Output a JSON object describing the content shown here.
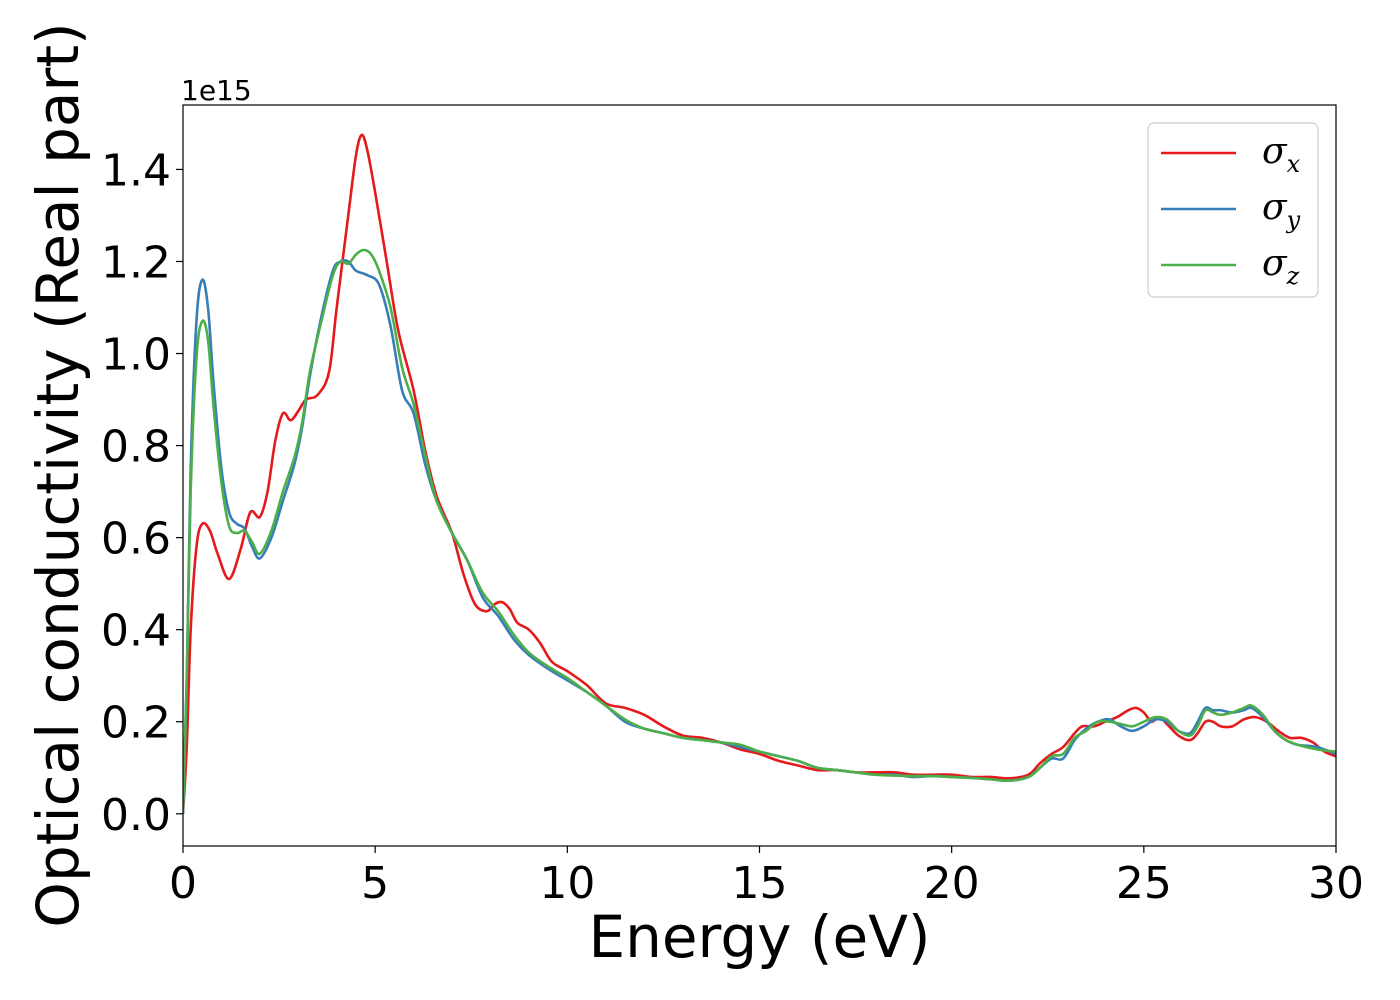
{
  "chart_data": {
    "type": "line",
    "title": "",
    "xlabel": "Energy (eV)",
    "ylabel": "Optical conductivity (Real part)",
    "y_offset_text": "1e15",
    "xlim": [
      0,
      30
    ],
    "ylim": [
      -0.07,
      1.54
    ],
    "x_ticks": [
      0,
      5,
      10,
      15,
      20,
      25,
      30
    ],
    "x_tick_labels": [
      "0",
      "5",
      "10",
      "15",
      "20",
      "25",
      "30"
    ],
    "y_ticks": [
      0.0,
      0.2,
      0.4,
      0.6,
      0.8,
      1.0,
      1.2,
      1.4
    ],
    "y_tick_labels": [
      "0.0",
      "0.2",
      "0.4",
      "0.6",
      "0.8",
      "1.0",
      "1.2",
      "1.4"
    ],
    "grid": false,
    "legend_position": "top-right",
    "series": [
      {
        "name": "σx",
        "legend_base": "σ",
        "legend_sub": "x",
        "color": "#e41a1c",
        "points": [
          [
            0,
            0.0
          ],
          [
            0.1,
            0.15
          ],
          [
            0.2,
            0.4
          ],
          [
            0.35,
            0.58
          ],
          [
            0.5,
            0.63
          ],
          [
            0.7,
            0.615
          ],
          [
            0.9,
            0.565
          ],
          [
            1.2,
            0.51
          ],
          [
            1.5,
            0.575
          ],
          [
            1.75,
            0.655
          ],
          [
            2.0,
            0.645
          ],
          [
            2.2,
            0.7
          ],
          [
            2.4,
            0.81
          ],
          [
            2.6,
            0.87
          ],
          [
            2.8,
            0.855
          ],
          [
            3.0,
            0.875
          ],
          [
            3.2,
            0.9
          ],
          [
            3.5,
            0.91
          ],
          [
            3.8,
            0.96
          ],
          [
            4.0,
            1.1
          ],
          [
            4.3,
            1.3
          ],
          [
            4.5,
            1.43
          ],
          [
            4.65,
            1.475
          ],
          [
            4.8,
            1.44
          ],
          [
            5.0,
            1.35
          ],
          [
            5.3,
            1.2
          ],
          [
            5.6,
            1.05
          ],
          [
            6.0,
            0.92
          ],
          [
            6.3,
            0.79
          ],
          [
            6.6,
            0.69
          ],
          [
            7.0,
            0.61
          ],
          [
            7.3,
            0.52
          ],
          [
            7.6,
            0.455
          ],
          [
            7.9,
            0.44
          ],
          [
            8.1,
            0.455
          ],
          [
            8.3,
            0.46
          ],
          [
            8.5,
            0.445
          ],
          [
            8.7,
            0.415
          ],
          [
            9.0,
            0.4
          ],
          [
            9.3,
            0.37
          ],
          [
            9.6,
            0.33
          ],
          [
            10.0,
            0.31
          ],
          [
            10.5,
            0.28
          ],
          [
            11.0,
            0.24
          ],
          [
            11.5,
            0.23
          ],
          [
            12.0,
            0.215
          ],
          [
            12.5,
            0.19
          ],
          [
            13.0,
            0.17
          ],
          [
            13.5,
            0.165
          ],
          [
            14.0,
            0.155
          ],
          [
            14.5,
            0.14
          ],
          [
            15.0,
            0.13
          ],
          [
            15.5,
            0.115
          ],
          [
            16.0,
            0.105
          ],
          [
            16.5,
            0.095
          ],
          [
            17.0,
            0.095
          ],
          [
            17.5,
            0.09
          ],
          [
            18.0,
            0.09
          ],
          [
            18.5,
            0.09
          ],
          [
            19.0,
            0.085
          ],
          [
            19.5,
            0.085
          ],
          [
            20.0,
            0.085
          ],
          [
            20.5,
            0.08
          ],
          [
            21.0,
            0.08
          ],
          [
            21.5,
            0.077
          ],
          [
            22.0,
            0.085
          ],
          [
            22.3,
            0.11
          ],
          [
            22.6,
            0.13
          ],
          [
            22.9,
            0.145
          ],
          [
            23.2,
            0.175
          ],
          [
            23.4,
            0.19
          ],
          [
            23.7,
            0.19
          ],
          [
            24.0,
            0.2
          ],
          [
            24.3,
            0.21
          ],
          [
            24.6,
            0.225
          ],
          [
            24.8,
            0.23
          ],
          [
            25.0,
            0.22
          ],
          [
            25.2,
            0.2
          ],
          [
            25.4,
            0.21
          ],
          [
            25.6,
            0.195
          ],
          [
            25.9,
            0.17
          ],
          [
            26.2,
            0.16
          ],
          [
            26.4,
            0.175
          ],
          [
            26.6,
            0.2
          ],
          [
            26.8,
            0.2
          ],
          [
            27.0,
            0.19
          ],
          [
            27.3,
            0.19
          ],
          [
            27.6,
            0.205
          ],
          [
            27.9,
            0.21
          ],
          [
            28.2,
            0.2
          ],
          [
            28.5,
            0.18
          ],
          [
            28.8,
            0.165
          ],
          [
            29.1,
            0.165
          ],
          [
            29.4,
            0.155
          ],
          [
            29.7,
            0.135
          ],
          [
            30.0,
            0.125
          ]
        ]
      },
      {
        "name": "σy",
        "legend_base": "σ",
        "legend_sub": "y",
        "color": "#377eb8",
        "points": [
          [
            0,
            0.0
          ],
          [
            0.1,
            0.3
          ],
          [
            0.2,
            0.75
          ],
          [
            0.35,
            1.07
          ],
          [
            0.5,
            1.16
          ],
          [
            0.65,
            1.1
          ],
          [
            0.8,
            0.93
          ],
          [
            1.0,
            0.75
          ],
          [
            1.2,
            0.655
          ],
          [
            1.4,
            0.63
          ],
          [
            1.6,
            0.62
          ],
          [
            1.8,
            0.58
          ],
          [
            2.0,
            0.555
          ],
          [
            2.3,
            0.6
          ],
          [
            2.6,
            0.68
          ],
          [
            2.9,
            0.76
          ],
          [
            3.1,
            0.84
          ],
          [
            3.3,
            0.95
          ],
          [
            3.6,
            1.08
          ],
          [
            3.9,
            1.18
          ],
          [
            4.1,
            1.2
          ],
          [
            4.3,
            1.2
          ],
          [
            4.5,
            1.18
          ],
          [
            4.8,
            1.17
          ],
          [
            5.1,
            1.15
          ],
          [
            5.4,
            1.06
          ],
          [
            5.7,
            0.92
          ],
          [
            6.0,
            0.87
          ],
          [
            6.3,
            0.76
          ],
          [
            6.6,
            0.68
          ],
          [
            7.0,
            0.61
          ],
          [
            7.4,
            0.55
          ],
          [
            7.8,
            0.47
          ],
          [
            8.2,
            0.43
          ],
          [
            8.6,
            0.38
          ],
          [
            9.0,
            0.345
          ],
          [
            9.5,
            0.315
          ],
          [
            10.0,
            0.29
          ],
          [
            10.5,
            0.265
          ],
          [
            11.0,
            0.235
          ],
          [
            11.5,
            0.2
          ],
          [
            12.0,
            0.185
          ],
          [
            12.5,
            0.175
          ],
          [
            13.0,
            0.165
          ],
          [
            13.5,
            0.16
          ],
          [
            14.0,
            0.155
          ],
          [
            14.5,
            0.145
          ],
          [
            15.0,
            0.135
          ],
          [
            15.5,
            0.125
          ],
          [
            16.0,
            0.115
          ],
          [
            16.5,
            0.1
          ],
          [
            17.0,
            0.095
          ],
          [
            17.5,
            0.09
          ],
          [
            18.0,
            0.085
          ],
          [
            18.5,
            0.085
          ],
          [
            19.0,
            0.08
          ],
          [
            19.5,
            0.082
          ],
          [
            20.0,
            0.08
          ],
          [
            20.5,
            0.078
          ],
          [
            21.0,
            0.075
          ],
          [
            21.5,
            0.072
          ],
          [
            22.0,
            0.08
          ],
          [
            22.3,
            0.1
          ],
          [
            22.6,
            0.12
          ],
          [
            22.9,
            0.12
          ],
          [
            23.2,
            0.16
          ],
          [
            23.5,
            0.185
          ],
          [
            23.8,
            0.2
          ],
          [
            24.1,
            0.205
          ],
          [
            24.4,
            0.19
          ],
          [
            24.7,
            0.18
          ],
          [
            25.0,
            0.19
          ],
          [
            25.3,
            0.205
          ],
          [
            25.6,
            0.2
          ],
          [
            25.9,
            0.18
          ],
          [
            26.2,
            0.175
          ],
          [
            26.4,
            0.2
          ],
          [
            26.6,
            0.23
          ],
          [
            26.8,
            0.225
          ],
          [
            27.0,
            0.225
          ],
          [
            27.3,
            0.22
          ],
          [
            27.6,
            0.225
          ],
          [
            27.8,
            0.23
          ],
          [
            28.1,
            0.21
          ],
          [
            28.4,
            0.18
          ],
          [
            28.7,
            0.16
          ],
          [
            29.0,
            0.15
          ],
          [
            29.5,
            0.145
          ],
          [
            30.0,
            0.13
          ]
        ]
      },
      {
        "name": "σz",
        "legend_base": "σ",
        "legend_sub": "z",
        "color": "#4daf4a",
        "points": [
          [
            0,
            0.0
          ],
          [
            0.1,
            0.3
          ],
          [
            0.2,
            0.7
          ],
          [
            0.35,
            0.99
          ],
          [
            0.5,
            1.07
          ],
          [
            0.65,
            1.03
          ],
          [
            0.8,
            0.88
          ],
          [
            1.0,
            0.72
          ],
          [
            1.2,
            0.625
          ],
          [
            1.4,
            0.61
          ],
          [
            1.6,
            0.615
          ],
          [
            1.8,
            0.59
          ],
          [
            2.0,
            0.565
          ],
          [
            2.3,
            0.615
          ],
          [
            2.6,
            0.7
          ],
          [
            2.9,
            0.775
          ],
          [
            3.1,
            0.85
          ],
          [
            3.3,
            0.96
          ],
          [
            3.6,
            1.07
          ],
          [
            3.9,
            1.17
          ],
          [
            4.1,
            1.2
          ],
          [
            4.3,
            1.195
          ],
          [
            4.5,
            1.215
          ],
          [
            4.7,
            1.225
          ],
          [
            4.9,
            1.215
          ],
          [
            5.1,
            1.18
          ],
          [
            5.4,
            1.1
          ],
          [
            5.7,
            0.97
          ],
          [
            6.0,
            0.89
          ],
          [
            6.3,
            0.78
          ],
          [
            6.6,
            0.68
          ],
          [
            7.0,
            0.61
          ],
          [
            7.4,
            0.55
          ],
          [
            7.8,
            0.48
          ],
          [
            8.2,
            0.44
          ],
          [
            8.6,
            0.39
          ],
          [
            9.0,
            0.35
          ],
          [
            9.5,
            0.32
          ],
          [
            10.0,
            0.295
          ],
          [
            10.5,
            0.265
          ],
          [
            11.0,
            0.235
          ],
          [
            11.5,
            0.205
          ],
          [
            12.0,
            0.185
          ],
          [
            12.5,
            0.175
          ],
          [
            13.0,
            0.165
          ],
          [
            13.5,
            0.16
          ],
          [
            14.0,
            0.155
          ],
          [
            14.5,
            0.15
          ],
          [
            15.0,
            0.135
          ],
          [
            15.5,
            0.125
          ],
          [
            16.0,
            0.115
          ],
          [
            16.5,
            0.1
          ],
          [
            17.0,
            0.095
          ],
          [
            17.5,
            0.09
          ],
          [
            18.0,
            0.085
          ],
          [
            18.5,
            0.083
          ],
          [
            19.0,
            0.082
          ],
          [
            19.5,
            0.082
          ],
          [
            20.0,
            0.08
          ],
          [
            20.5,
            0.078
          ],
          [
            21.0,
            0.075
          ],
          [
            21.5,
            0.072
          ],
          [
            22.0,
            0.08
          ],
          [
            22.3,
            0.1
          ],
          [
            22.6,
            0.125
          ],
          [
            22.9,
            0.13
          ],
          [
            23.2,
            0.165
          ],
          [
            23.5,
            0.18
          ],
          [
            23.8,
            0.2
          ],
          [
            24.1,
            0.2
          ],
          [
            24.4,
            0.195
          ],
          [
            24.7,
            0.19
          ],
          [
            25.0,
            0.2
          ],
          [
            25.3,
            0.21
          ],
          [
            25.6,
            0.205
          ],
          [
            25.9,
            0.18
          ],
          [
            26.2,
            0.17
          ],
          [
            26.4,
            0.19
          ],
          [
            26.6,
            0.225
          ],
          [
            26.8,
            0.22
          ],
          [
            27.0,
            0.215
          ],
          [
            27.3,
            0.22
          ],
          [
            27.6,
            0.23
          ],
          [
            27.8,
            0.235
          ],
          [
            28.1,
            0.215
          ],
          [
            28.4,
            0.18
          ],
          [
            28.7,
            0.16
          ],
          [
            29.0,
            0.15
          ],
          [
            29.5,
            0.14
          ],
          [
            30.0,
            0.135
          ]
        ]
      }
    ]
  }
}
